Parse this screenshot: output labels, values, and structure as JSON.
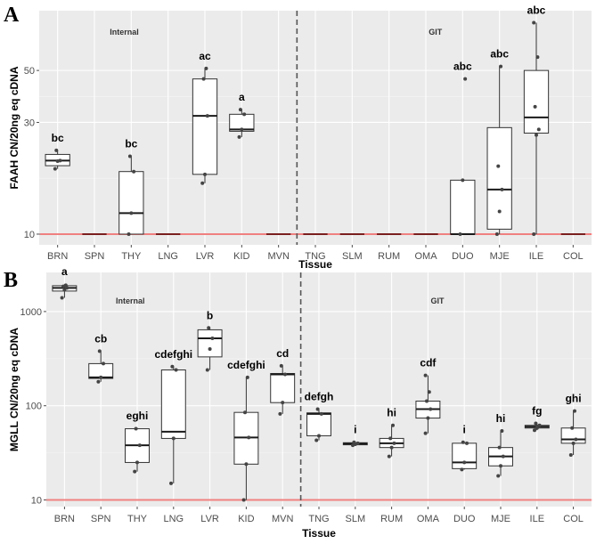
{
  "colors": {
    "panel": "#ebebeb",
    "grid": "#ffffff",
    "ref_line": "#f08080",
    "divider": "#555555",
    "box_fill": "#ffffff",
    "point": "#444444"
  },
  "chart_data": [
    {
      "panel_label": "A",
      "type": "box",
      "ylabel": "FAAH CN/20ng eq cDNA",
      "xlabel": "Tissue",
      "y_scale": "log",
      "ylim": [
        9.0,
        90
      ],
      "y_ticks": [
        10,
        30,
        50
      ],
      "reference_line": 10,
      "divider_after": "MVN",
      "region_labels": [
        "Internal",
        "GIT"
      ],
      "categories": [
        "BRN",
        "SPN",
        "THY",
        "LNG",
        "LVR",
        "KID",
        "MVN",
        "TNG",
        "SLM",
        "RUM",
        "OMA",
        "DUO",
        "MJE",
        "ILE",
        "COL"
      ],
      "boxes": [
        {
          "min": 19,
          "q1": 19.6,
          "median": 20.6,
          "q3": 21.9,
          "max": 22.8,
          "points": [
            19,
            20.5,
            20.6,
            22.8
          ],
          "label": "bc"
        },
        {
          "min": 10,
          "q1": 10,
          "median": 10,
          "q3": 10,
          "max": 10,
          "points": [],
          "label": ""
        },
        {
          "min": 10,
          "q1": 10,
          "median": 12.3,
          "q3": 18.5,
          "max": 21.5,
          "points": [
            10,
            12.3,
            18.5,
            21.5
          ],
          "label": "bc"
        },
        {
          "min": 10,
          "q1": 10,
          "median": 10,
          "q3": 10,
          "max": 10,
          "points": [],
          "label": ""
        },
        {
          "min": 16.5,
          "q1": 18,
          "median": 32,
          "q3": 46,
          "max": 51,
          "points": [
            16.5,
            18,
            32,
            46,
            51
          ],
          "label": "ac"
        },
        {
          "min": 26,
          "q1": 27.5,
          "median": 28,
          "q3": 32.5,
          "max": 34,
          "points": [
            26,
            28,
            32.5,
            34
          ],
          "label": "a"
        },
        {
          "min": 10,
          "q1": 10,
          "median": 10,
          "q3": 10,
          "max": 10,
          "points": [],
          "label": ""
        },
        {
          "min": 10,
          "q1": 10,
          "median": 10,
          "q3": 10,
          "max": 10,
          "points": [],
          "label": ""
        },
        {
          "min": 10,
          "q1": 10,
          "median": 10,
          "q3": 10,
          "max": 10,
          "points": [],
          "label": ""
        },
        {
          "min": 10,
          "q1": 10,
          "median": 10,
          "q3": 10,
          "max": 10,
          "points": [],
          "label": ""
        },
        {
          "min": 10,
          "q1": 10,
          "median": 10,
          "q3": 10,
          "max": 10,
          "points": [],
          "label": ""
        },
        {
          "min": 10,
          "q1": 10,
          "median": 10,
          "q3": 17,
          "max": 17,
          "points": [
            10,
            17,
            46
          ],
          "label": "abc"
        },
        {
          "min": 10,
          "q1": 10.5,
          "median": 15.5,
          "q3": 28.5,
          "max": 52,
          "points": [
            10,
            12.5,
            15.5,
            19.5,
            52
          ],
          "label": "abc"
        },
        {
          "min": 10,
          "q1": 27,
          "median": 31.5,
          "q3": 50,
          "max": 80,
          "points": [
            10,
            26.5,
            28,
            35,
            57,
            80
          ],
          "label": "abc"
        },
        {
          "min": 10,
          "q1": 10,
          "median": 10,
          "q3": 10,
          "max": 10,
          "points": [],
          "label": ""
        }
      ]
    },
    {
      "panel_label": "B",
      "type": "box",
      "ylabel": "MGLL CN/20ng eq cDNA",
      "xlabel": "Tissue",
      "y_scale": "log",
      "ylim": [
        8.5,
        2600
      ],
      "y_ticks": [
        10,
        100,
        1000
      ],
      "reference_line": 10,
      "divider_after": "MVN",
      "region_labels": [
        "Internal",
        "GIT"
      ],
      "categories": [
        "BRN",
        "SPN",
        "THY",
        "LNG",
        "LVR",
        "KID",
        "MVN",
        "TNG",
        "SLM",
        "RUM",
        "OMA",
        "DUO",
        "MJE",
        "ILE",
        "COL"
      ],
      "boxes": [
        {
          "min": 1400,
          "q1": 1650,
          "median": 1780,
          "q3": 1880,
          "max": 1950,
          "points": [
            1400,
            1700,
            1780,
            1850,
            1900
          ],
          "label": "a"
        },
        {
          "min": 180,
          "q1": 195,
          "median": 200,
          "q3": 280,
          "max": 380,
          "points": [
            180,
            200,
            280,
            380
          ],
          "label": "cb"
        },
        {
          "min": 20,
          "q1": 25,
          "median": 38,
          "q3": 57,
          "max": 58,
          "points": [
            20,
            25,
            38,
            57
          ],
          "label": "eghi"
        },
        {
          "min": 15,
          "q1": 45,
          "median": 53,
          "q3": 240,
          "max": 260,
          "points": [
            15,
            45,
            240,
            260
          ],
          "label": "cdefghi"
        },
        {
          "min": 240,
          "q1": 330,
          "median": 520,
          "q3": 640,
          "max": 670,
          "points": [
            240,
            400,
            520,
            670
          ],
          "label": "b"
        },
        {
          "min": 10,
          "q1": 24,
          "median": 46,
          "q3": 85,
          "max": 200,
          "points": [
            10,
            24,
            46,
            85,
            200
          ],
          "label": "cdefghi"
        },
        {
          "min": 82,
          "q1": 108,
          "median": 215,
          "q3": 220,
          "max": 265,
          "points": [
            82,
            108,
            215,
            265
          ],
          "label": "cd"
        },
        {
          "min": 43,
          "q1": 48,
          "median": 82,
          "q3": 84,
          "max": 92,
          "points": [
            43,
            48,
            82,
            92
          ],
          "label": "defgh"
        },
        {
          "min": 38,
          "q1": 38.5,
          "median": 39.5,
          "q3": 40.5,
          "max": 41,
          "points": [
            38,
            39,
            40,
            41
          ],
          "label": "i"
        },
        {
          "min": 29,
          "q1": 36,
          "median": 40,
          "q3": 45,
          "max": 62,
          "points": [
            29,
            36,
            40,
            45,
            62
          ],
          "label": "hi"
        },
        {
          "min": 51,
          "q1": 74,
          "median": 92,
          "q3": 112,
          "max": 210,
          "points": [
            51,
            74,
            92,
            112,
            140,
            210
          ],
          "label": "cdf"
        },
        {
          "min": 21,
          "q1": 21.5,
          "median": 25,
          "q3": 40,
          "max": 41,
          "points": [
            21,
            25,
            40,
            41
          ],
          "label": "i"
        },
        {
          "min": 18,
          "q1": 23,
          "median": 29,
          "q3": 36,
          "max": 54,
          "points": [
            18,
            23,
            29,
            36,
            54
          ],
          "label": "hi"
        },
        {
          "min": 55,
          "q1": 58,
          "median": 60,
          "q3": 62,
          "max": 65,
          "points": [
            55,
            58,
            62,
            65
          ],
          "label": "fg"
        },
        {
          "min": 30,
          "q1": 40,
          "median": 44,
          "q3": 58,
          "max": 88,
          "points": [
            30,
            40,
            44,
            58,
            88
          ],
          "label": "ghi"
        }
      ]
    }
  ]
}
